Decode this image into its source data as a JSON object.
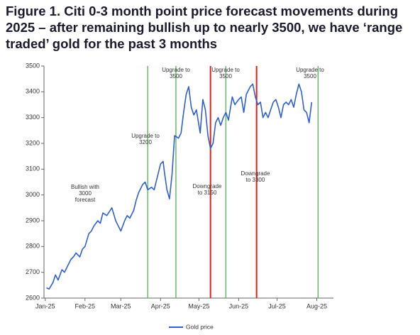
{
  "chart_data": {
    "type": "line",
    "title": "Figure 1. Citi 0-3 month point price forecast movements during 2025 – after remaining bullish up to nearly 3500, we have ‘range traded’ gold for the past 3 months",
    "xlim": [
      -1,
      225
    ],
    "xticks": [
      {
        "value": 0,
        "label": "Jan-25"
      },
      {
        "value": 31,
        "label": "Feb-25"
      },
      {
        "value": 59,
        "label": "Mar-25"
      },
      {
        "value": 90,
        "label": "Apr-25"
      },
      {
        "value": 120,
        "label": "May-25"
      },
      {
        "value": 151,
        "label": "Jun-25"
      },
      {
        "value": 181,
        "label": "Jul-25"
      },
      {
        "value": 212,
        "label": "Aug-25"
      }
    ],
    "ylim": [
      2600,
      3500
    ],
    "yticks": [
      2600,
      2700,
      2800,
      2900,
      3000,
      3100,
      3200,
      3300,
      3400,
      3500
    ],
    "series": [
      {
        "name": "Gold price",
        "color": "#2f5fd0",
        "x": [
          1,
          3,
          6,
          8,
          10,
          13,
          15,
          17,
          20,
          22,
          24,
          27,
          29,
          31,
          34,
          36,
          38,
          41,
          43,
          45,
          48,
          50,
          52,
          55,
          57,
          59,
          62,
          64,
          66,
          69,
          71,
          73,
          76,
          78,
          80,
          83,
          85,
          87,
          89,
          90,
          92,
          93,
          95,
          97,
          99,
          101,
          104,
          106,
          108,
          110,
          112,
          114,
          116,
          118,
          121,
          123,
          125,
          127,
          129,
          131,
          133,
          135,
          137,
          139,
          141,
          143,
          146,
          148,
          151,
          153,
          155,
          157,
          160,
          162,
          164,
          166,
          168,
          170,
          172,
          174,
          176,
          178,
          180,
          182,
          184,
          186,
          188,
          190,
          192,
          194,
          196,
          198,
          200,
          202,
          204,
          206,
          208
        ],
        "values": [
          2640,
          2635,
          2660,
          2690,
          2670,
          2710,
          2700,
          2720,
          2750,
          2760,
          2775,
          2760,
          2790,
          2800,
          2850,
          2860,
          2880,
          2900,
          2890,
          2930,
          2920,
          2935,
          2950,
          2900,
          2880,
          2860,
          2900,
          2920,
          2910,
          2940,
          2980,
          3010,
          3040,
          3050,
          3020,
          3030,
          3020,
          3060,
          3100,
          3120,
          3130,
          3090,
          3020,
          2985,
          3080,
          3230,
          3220,
          3240,
          3320,
          3390,
          3420,
          3340,
          3310,
          3330,
          3240,
          3370,
          3330,
          3230,
          3180,
          3200,
          3280,
          3300,
          3270,
          3300,
          3320,
          3290,
          3380,
          3350,
          3370,
          3380,
          3320,
          3390,
          3420,
          3430,
          3380,
          3350,
          3360,
          3300,
          3320,
          3300,
          3330,
          3360,
          3370,
          3340,
          3300,
          3350,
          3360,
          3350,
          3370,
          3340,
          3390,
          3430,
          3400,
          3330,
          3320,
          3280,
          3360
        ]
      }
    ],
    "vlines": [
      {
        "x": 80,
        "color": "#5cb85c"
      },
      {
        "x": 102,
        "color": "#5cb85c"
      },
      {
        "x": 129,
        "color": "#e0231c"
      },
      {
        "x": 141,
        "color": "#5cb85c"
      },
      {
        "x": 165,
        "color": "#e0231c"
      },
      {
        "x": 213,
        "color": "#5cb85c"
      }
    ],
    "annotations": [
      [
        "Bullish with",
        "3000",
        "forecast"
      ],
      [
        "Upgrade to",
        "3200"
      ],
      [
        "Upgrade to",
        "3500"
      ],
      [
        "Upgrade to",
        "3500"
      ],
      [
        "Downgrade",
        "to 3150"
      ],
      [
        "Downgrade",
        "to 3300"
      ],
      [
        "Upgrade to",
        "3500"
      ]
    ],
    "legend": "bottom"
  }
}
